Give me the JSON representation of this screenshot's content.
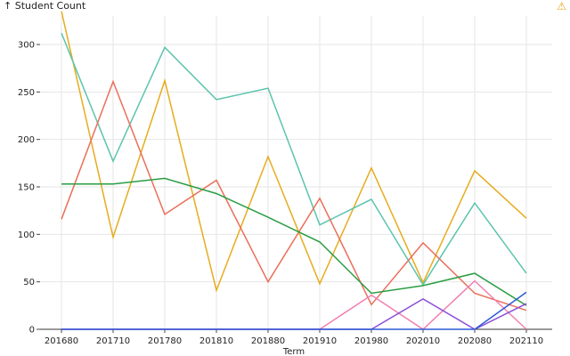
{
  "chart_data": {
    "type": "line",
    "title": "",
    "ylabel": "↑ Student Count",
    "xlabel": "Term",
    "x": [
      "201680",
      "201710",
      "201780",
      "201810",
      "201880",
      "201910",
      "201980",
      "202010",
      "202080",
      "202110"
    ],
    "ylim": [
      0,
      330
    ],
    "yticks": [
      0,
      50,
      100,
      150,
      200,
      250,
      300
    ],
    "grid": true,
    "series": [
      {
        "color": "#e6ac1e",
        "values": [
          335,
          97,
          262,
          41,
          182,
          48,
          170,
          49,
          167,
          117
        ]
      },
      {
        "color": "#5cc4ad",
        "values": [
          312,
          177,
          297,
          242,
          254,
          110,
          137,
          47,
          133,
          59
        ]
      },
      {
        "color": "#ea6f5a",
        "values": [
          116,
          261,
          121,
          157,
          50,
          138,
          26,
          91,
          38,
          20
        ]
      },
      {
        "color": "#2a9d42",
        "values": [
          153,
          153,
          159,
          143,
          118,
          92,
          38,
          46,
          59,
          25
        ]
      },
      {
        "color": "#f07fb0",
        "values": [
          0,
          0,
          0,
          0,
          0,
          0,
          36,
          0,
          51,
          0
        ]
      },
      {
        "color": "#8a4fd8",
        "values": [
          0,
          0,
          0,
          0,
          0,
          0,
          0,
          32,
          0,
          27
        ]
      },
      {
        "color": "#2d5bd6",
        "values": [
          0,
          0,
          0,
          0,
          0,
          0,
          0,
          0,
          0,
          39
        ]
      }
    ]
  },
  "icons": {
    "warning": "warning-icon"
  }
}
